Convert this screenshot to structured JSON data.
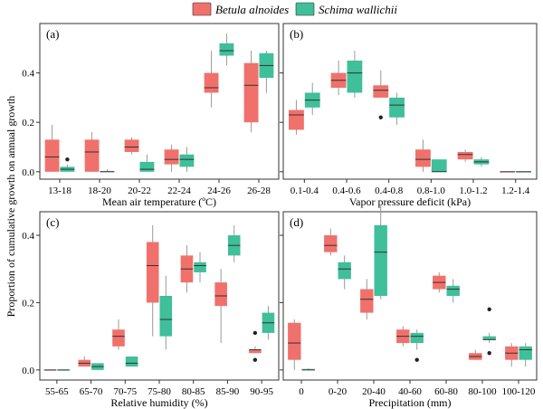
{
  "figure": {
    "ylabel": "Proportion of cumulative growth on annual growth",
    "colors": {
      "betula": "#f0716b",
      "schima": "#3fbf9a",
      "frame": "#333333"
    }
  },
  "legend": {
    "position": "top-center",
    "entries": [
      {
        "name": "Betula alnoides",
        "color": "#f0716b"
      },
      {
        "name": "Schima wallichii",
        "color": "#3fbf9a"
      }
    ]
  },
  "chart_data": [
    {
      "type": "box",
      "panel": "(a)",
      "xlabel": "Mean air temperature (ºC)",
      "categories": [
        "13-18",
        "18-20",
        "20-22",
        "22-24",
        "24-26",
        "26-28"
      ],
      "ylim": [
        -0.03,
        0.6
      ],
      "yticks": [
        0.0,
        0.2,
        0.4
      ],
      "show_ytick_labels": true,
      "series": [
        {
          "name": "Betula alnoides",
          "color": "#f0716b",
          "boxes": [
            {
              "cat": 0,
              "min": 0.0,
              "q1": 0.0,
              "med": 0.06,
              "q3": 0.13,
              "max": 0.19,
              "outliers": []
            },
            {
              "cat": 1,
              "min": 0.0,
              "q1": 0.0,
              "med": 0.08,
              "q3": 0.13,
              "max": 0.16,
              "outliers": []
            },
            {
              "cat": 2,
              "min": 0.07,
              "q1": 0.08,
              "med": 0.1,
              "q3": 0.13,
              "max": 0.14,
              "outliers": []
            },
            {
              "cat": 3,
              "min": 0.0,
              "q1": 0.03,
              "med": 0.05,
              "q3": 0.09,
              "max": 0.11,
              "outliers": []
            },
            {
              "cat": 4,
              "min": 0.26,
              "q1": 0.32,
              "med": 0.34,
              "q3": 0.4,
              "max": 0.49,
              "outliers": []
            },
            {
              "cat": 5,
              "min": 0.16,
              "q1": 0.2,
              "med": 0.35,
              "q3": 0.44,
              "max": 0.49,
              "outliers": []
            }
          ]
        },
        {
          "name": "Schima wallichii",
          "color": "#3fbf9a",
          "boxes": [
            {
              "cat": 0,
              "min": 0.0,
              "q1": 0.0,
              "med": 0.01,
              "q3": 0.02,
              "max": 0.03,
              "outliers": [
                0.05
              ]
            },
            {
              "cat": 1,
              "min": 0.0,
              "q1": 0.0,
              "med": 0.0,
              "q3": 0.003,
              "max": 0.01,
              "outliers": []
            },
            {
              "cat": 2,
              "min": 0.0,
              "q1": 0.0,
              "med": 0.01,
              "q3": 0.04,
              "max": 0.07,
              "outliers": []
            },
            {
              "cat": 3,
              "min": 0.0,
              "q1": 0.02,
              "med": 0.05,
              "q3": 0.07,
              "max": 0.1,
              "outliers": []
            },
            {
              "cat": 4,
              "min": 0.43,
              "q1": 0.47,
              "med": 0.49,
              "q3": 0.52,
              "max": 0.56,
              "outliers": []
            },
            {
              "cat": 5,
              "min": 0.32,
              "q1": 0.38,
              "med": 0.43,
              "q3": 0.48,
              "max": 0.49,
              "outliers": []
            }
          ]
        }
      ]
    },
    {
      "type": "box",
      "panel": "(b)",
      "xlabel": "Vapor pressure deficit (kPa)",
      "categories": [
        "0.1-0.4",
        "0.4-0.6",
        "0.4-0.8",
        "0.8-1.0",
        "1.0-1.2",
        "1.2-1.4"
      ],
      "ylim": [
        -0.03,
        0.6
      ],
      "yticks": [
        0.0,
        0.2,
        0.4
      ],
      "show_ytick_labels": false,
      "series": [
        {
          "name": "Betula alnoides",
          "color": "#f0716b",
          "boxes": [
            {
              "cat": 0,
              "min": 0.15,
              "q1": 0.17,
              "med": 0.23,
              "q3": 0.25,
              "max": 0.29,
              "outliers": []
            },
            {
              "cat": 1,
              "min": 0.31,
              "q1": 0.34,
              "med": 0.37,
              "q3": 0.4,
              "max": 0.45,
              "outliers": []
            },
            {
              "cat": 2,
              "min": 0.3,
              "q1": 0.3,
              "med": 0.33,
              "q3": 0.35,
              "max": 0.41,
              "outliers": [
                0.22
              ]
            },
            {
              "cat": 3,
              "min": 0.0,
              "q1": 0.02,
              "med": 0.05,
              "q3": 0.09,
              "max": 0.13,
              "outliers": []
            },
            {
              "cat": 4,
              "min": 0.04,
              "q1": 0.05,
              "med": 0.07,
              "q3": 0.08,
              "max": 0.09,
              "outliers": []
            },
            {
              "cat": 5,
              "min": 0.0,
              "q1": 0.0,
              "med": 0.0,
              "q3": 0.0,
              "max": 0.0,
              "outliers": []
            }
          ]
        },
        {
          "name": "Schima wallichii",
          "color": "#3fbf9a",
          "boxes": [
            {
              "cat": 0,
              "min": 0.23,
              "q1": 0.26,
              "med": 0.29,
              "q3": 0.32,
              "max": 0.36,
              "outliers": []
            },
            {
              "cat": 1,
              "min": 0.3,
              "q1": 0.32,
              "med": 0.4,
              "q3": 0.45,
              "max": 0.49,
              "outliers": []
            },
            {
              "cat": 2,
              "min": 0.19,
              "q1": 0.22,
              "med": 0.27,
              "q3": 0.3,
              "max": 0.32,
              "outliers": []
            },
            {
              "cat": 3,
              "min": 0.0,
              "q1": 0.0,
              "med": 0.0,
              "q3": 0.05,
              "max": 0.05,
              "outliers": []
            },
            {
              "cat": 4,
              "min": 0.02,
              "q1": 0.03,
              "med": 0.04,
              "q3": 0.05,
              "max": 0.06,
              "outliers": []
            },
            {
              "cat": 5,
              "min": 0.0,
              "q1": 0.0,
              "med": 0.0,
              "q3": 0.0,
              "max": 0.0,
              "outliers": []
            }
          ]
        }
      ]
    },
    {
      "type": "box",
      "panel": "(c)",
      "xlabel": "Relative humidity (%)",
      "categories": [
        "55-65",
        "65-70",
        "70-75",
        "75-80",
        "80-85",
        "85-90",
        "90-95"
      ],
      "ylim": [
        -0.03,
        0.47
      ],
      "yticks": [
        0.0,
        0.2,
        0.4
      ],
      "show_ytick_labels": true,
      "series": [
        {
          "name": "Betula alnoides",
          "color": "#f0716b",
          "boxes": [
            {
              "cat": 0,
              "min": 0.0,
              "q1": 0.0,
              "med": 0.0,
              "q3": 0.0,
              "max": 0.0,
              "outliers": []
            },
            {
              "cat": 1,
              "min": 0.01,
              "q1": 0.01,
              "med": 0.02,
              "q3": 0.03,
              "max": 0.04,
              "outliers": []
            },
            {
              "cat": 2,
              "min": 0.06,
              "q1": 0.07,
              "med": 0.1,
              "q3": 0.12,
              "max": 0.15,
              "outliers": []
            },
            {
              "cat": 3,
              "min": 0.1,
              "q1": 0.2,
              "med": 0.31,
              "q3": 0.38,
              "max": 0.43,
              "outliers": []
            },
            {
              "cat": 4,
              "min": 0.23,
              "q1": 0.26,
              "med": 0.3,
              "q3": 0.34,
              "max": 0.37,
              "outliers": []
            },
            {
              "cat": 5,
              "min": 0.08,
              "q1": 0.19,
              "med": 0.22,
              "q3": 0.26,
              "max": 0.3,
              "outliers": []
            },
            {
              "cat": 6,
              "min": 0.05,
              "q1": 0.05,
              "med": 0.06,
              "q3": 0.06,
              "max": 0.07,
              "outliers": [
                0.11,
                0.03
              ]
            }
          ]
        },
        {
          "name": "Schima wallichii",
          "color": "#3fbf9a",
          "boxes": [
            {
              "cat": 0,
              "min": 0.0,
              "q1": 0.0,
              "med": 0.0,
              "q3": 0.0,
              "max": 0.0,
              "outliers": []
            },
            {
              "cat": 1,
              "min": 0.0,
              "q1": 0.0,
              "med": 0.01,
              "q3": 0.02,
              "max": 0.02,
              "outliers": []
            },
            {
              "cat": 2,
              "min": 0.01,
              "q1": 0.01,
              "med": 0.02,
              "q3": 0.04,
              "max": 0.04,
              "outliers": []
            },
            {
              "cat": 3,
              "min": 0.06,
              "q1": 0.1,
              "med": 0.15,
              "q3": 0.22,
              "max": 0.28,
              "outliers": []
            },
            {
              "cat": 4,
              "min": 0.26,
              "q1": 0.29,
              "med": 0.31,
              "q3": 0.32,
              "max": 0.35,
              "outliers": []
            },
            {
              "cat": 5,
              "min": 0.32,
              "q1": 0.34,
              "med": 0.37,
              "q3": 0.4,
              "max": 0.43,
              "outliers": []
            },
            {
              "cat": 6,
              "min": 0.09,
              "q1": 0.11,
              "med": 0.14,
              "q3": 0.17,
              "max": 0.19,
              "outliers": []
            }
          ]
        }
      ]
    },
    {
      "type": "box",
      "panel": "(d)",
      "xlabel": "Precipitation (mm)",
      "categories": [
        "0",
        "0-20",
        "20-40",
        "40-60",
        "60-80",
        "80-100",
        "100-120"
      ],
      "ylim": [
        -0.03,
        0.47
      ],
      "yticks": [
        0.0,
        0.2,
        0.4
      ],
      "show_ytick_labels": false,
      "series": [
        {
          "name": "Betula alnoides",
          "color": "#f0716b",
          "boxes": [
            {
              "cat": 0,
              "min": 0.0,
              "q1": 0.03,
              "med": 0.08,
              "q3": 0.14,
              "max": 0.15,
              "outliers": []
            },
            {
              "cat": 1,
              "min": 0.34,
              "q1": 0.35,
              "med": 0.37,
              "q3": 0.4,
              "max": 0.42,
              "outliers": []
            },
            {
              "cat": 2,
              "min": 0.15,
              "q1": 0.17,
              "med": 0.21,
              "q3": 0.24,
              "max": 0.27,
              "outliers": []
            },
            {
              "cat": 3,
              "min": 0.07,
              "q1": 0.08,
              "med": 0.1,
              "q3": 0.12,
              "max": 0.13,
              "outliers": []
            },
            {
              "cat": 4,
              "min": 0.23,
              "q1": 0.24,
              "med": 0.26,
              "q3": 0.28,
              "max": 0.29,
              "outliers": []
            },
            {
              "cat": 5,
              "min": 0.03,
              "q1": 0.03,
              "med": 0.04,
              "q3": 0.05,
              "max": 0.06,
              "outliers": []
            },
            {
              "cat": 6,
              "min": 0.01,
              "q1": 0.03,
              "med": 0.05,
              "q3": 0.07,
              "max": 0.08,
              "outliers": []
            }
          ]
        },
        {
          "name": "Schima wallichii",
          "color": "#3fbf9a",
          "boxes": [
            {
              "cat": 0,
              "min": 0.0,
              "q1": 0.0,
              "med": 0.0,
              "q3": 0.003,
              "max": 0.005,
              "outliers": []
            },
            {
              "cat": 1,
              "min": 0.24,
              "q1": 0.27,
              "med": 0.3,
              "q3": 0.32,
              "max": 0.34,
              "outliers": []
            },
            {
              "cat": 2,
              "min": 0.21,
              "q1": 0.22,
              "med": 0.35,
              "q3": 0.43,
              "max": 0.49,
              "outliers": []
            },
            {
              "cat": 3,
              "min": 0.06,
              "q1": 0.08,
              "med": 0.1,
              "q3": 0.11,
              "max": 0.12,
              "outliers": [
                0.03
              ]
            },
            {
              "cat": 4,
              "min": 0.2,
              "q1": 0.22,
              "med": 0.24,
              "q3": 0.25,
              "max": 0.27,
              "outliers": []
            },
            {
              "cat": 5,
              "min": 0.08,
              "q1": 0.09,
              "med": 0.09,
              "q3": 0.1,
              "max": 0.11,
              "outliers": [
                0.18,
                0.05
              ]
            },
            {
              "cat": 6,
              "min": 0.01,
              "q1": 0.03,
              "med": 0.06,
              "q3": 0.07,
              "max": 0.08,
              "outliers": []
            }
          ]
        }
      ]
    }
  ]
}
